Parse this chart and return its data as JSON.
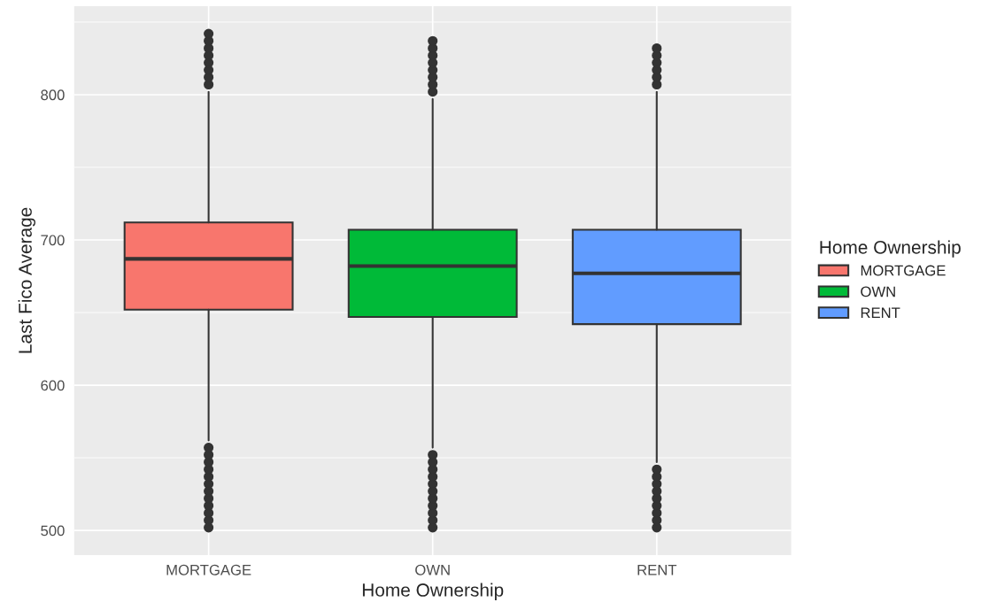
{
  "chart_data": {
    "type": "box",
    "xlabel": "Home Ownership",
    "ylabel": "Last Fico Average",
    "legend_title": "Home Ownership",
    "categories": [
      "MORTGAGE",
      "OWN",
      "RENT"
    ],
    "series": [
      {
        "name": "MORTGAGE",
        "color": "#f8766d",
        "boxes": [
          {
            "low": 562,
            "q1": 652,
            "median": 687,
            "q3": 712,
            "high": 802,
            "outliers": [
              502,
              507,
              512,
              517,
              522,
              527,
              532,
              537,
              542,
              547,
              552,
              557,
              807,
              812,
              817,
              822,
              827,
              832,
              837,
              842
            ]
          },
          null,
          null
        ]
      },
      {
        "name": "OWN",
        "color": "#00ba38",
        "boxes": [
          null,
          {
            "low": 557,
            "q1": 647,
            "median": 682,
            "q3": 707,
            "high": 797,
            "outliers": [
              502,
              507,
              512,
              517,
              522,
              527,
              532,
              537,
              542,
              547,
              552,
              802,
              807,
              812,
              817,
              822,
              827,
              832,
              837
            ]
          },
          null
        ]
      },
      {
        "name": "RENT",
        "color": "#619cff",
        "boxes": [
          null,
          null,
          {
            "low": 547,
            "q1": 642,
            "median": 677,
            "q3": 707,
            "high": 802,
            "outliers": [
              502,
              507,
              512,
              517,
              522,
              527,
              532,
              537,
              542,
              807,
              812,
              817,
              822,
              827,
              832
            ]
          }
        ]
      }
    ],
    "ylim": [
      483,
      861
    ],
    "yticks": [
      500,
      600,
      700,
      800
    ],
    "grid": true,
    "legend": "right"
  }
}
